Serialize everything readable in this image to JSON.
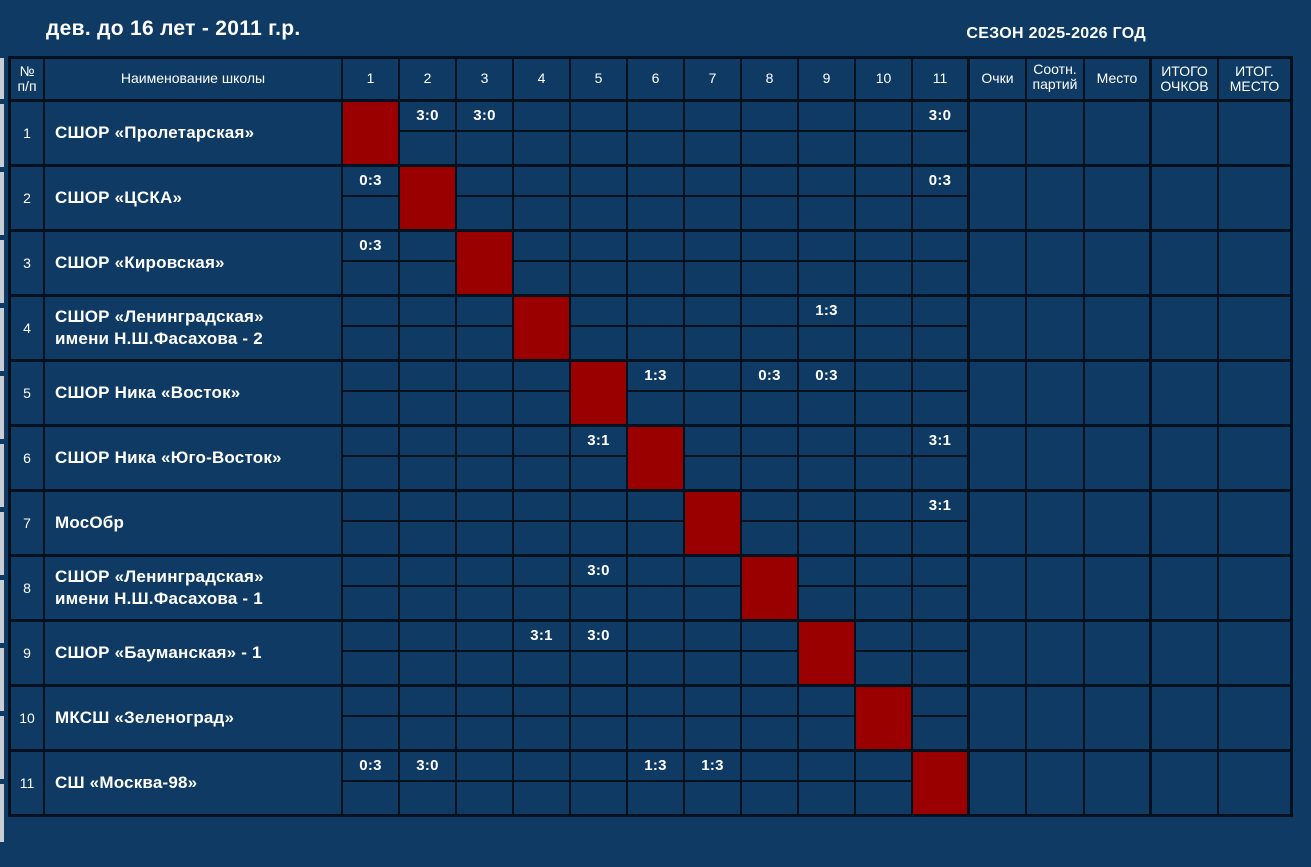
{
  "title": "дев. до 16 лет - 2011 г.р.",
  "season": "СЕЗОН 2025-2026 ГОД",
  "colors": {
    "background": "#0e3a64",
    "diagonal": "#9a0000",
    "gridline": "#03101e",
    "text": "#ffffff",
    "edge_strip": "#c9ced4"
  },
  "header": {
    "num": "№ п/п",
    "school": "Наименование школы",
    "rounds": [
      "1",
      "2",
      "3",
      "4",
      "5",
      "6",
      "7",
      "8",
      "9",
      "10",
      "11"
    ],
    "points": "Очки",
    "ratio": "Соотн. партий",
    "place": "Место",
    "total_points": "ИТОГО ОЧКОВ",
    "total_place": "ИТОГ. МЕСТО"
  },
  "teams": [
    {
      "num": "1",
      "name": "СШОР «Пролетарская»",
      "diagonal": 1,
      "scores": {
        "2": "3:0",
        "3": "3:0",
        "11": "3:0"
      }
    },
    {
      "num": "2",
      "name": "СШОР «ЦСКА»",
      "diagonal": 2,
      "scores": {
        "1": "0:3",
        "11": "0:3"
      }
    },
    {
      "num": "3",
      "name": "СШОР «Кировская»",
      "diagonal": 3,
      "scores": {
        "1": "0:3"
      }
    },
    {
      "num": "4",
      "name": "СШОР «Ленинградская»\nимени Н.Ш.Фасахова - 2",
      "diagonal": 4,
      "scores": {
        "9": "1:3"
      }
    },
    {
      "num": "5",
      "name": "СШОР Ника «Восток»",
      "diagonal": 5,
      "scores": {
        "6": "1:3",
        "8": "0:3",
        "9": "0:3"
      }
    },
    {
      "num": "6",
      "name": "СШОР Ника «Юго-Восток»",
      "diagonal": 6,
      "scores": {
        "5": "3:1",
        "11": "3:1"
      }
    },
    {
      "num": "7",
      "name": "МосОбр",
      "diagonal": 7,
      "scores": {
        "11": "3:1"
      }
    },
    {
      "num": "8",
      "name": "СШОР «Ленинградская»\nимени Н.Ш.Фасахова - 1",
      "diagonal": 8,
      "scores": {
        "5": "3:0"
      }
    },
    {
      "num": "9",
      "name": "СШОР «Бауманская» - 1",
      "diagonal": 9,
      "scores": {
        "4": "3:1",
        "5": "3:0"
      }
    },
    {
      "num": "10",
      "name": "МКСШ «Зеленоград»",
      "diagonal": 10,
      "scores": {}
    },
    {
      "num": "11",
      "name": "СШ «Москва-98»",
      "diagonal": 11,
      "scores": {
        "1": "0:3",
        "2": "3:0",
        "6": "1:3",
        "7": "1:3"
      }
    }
  ],
  "summary_keys": [
    "points",
    "ratio",
    "place",
    "total_points",
    "total_place"
  ]
}
